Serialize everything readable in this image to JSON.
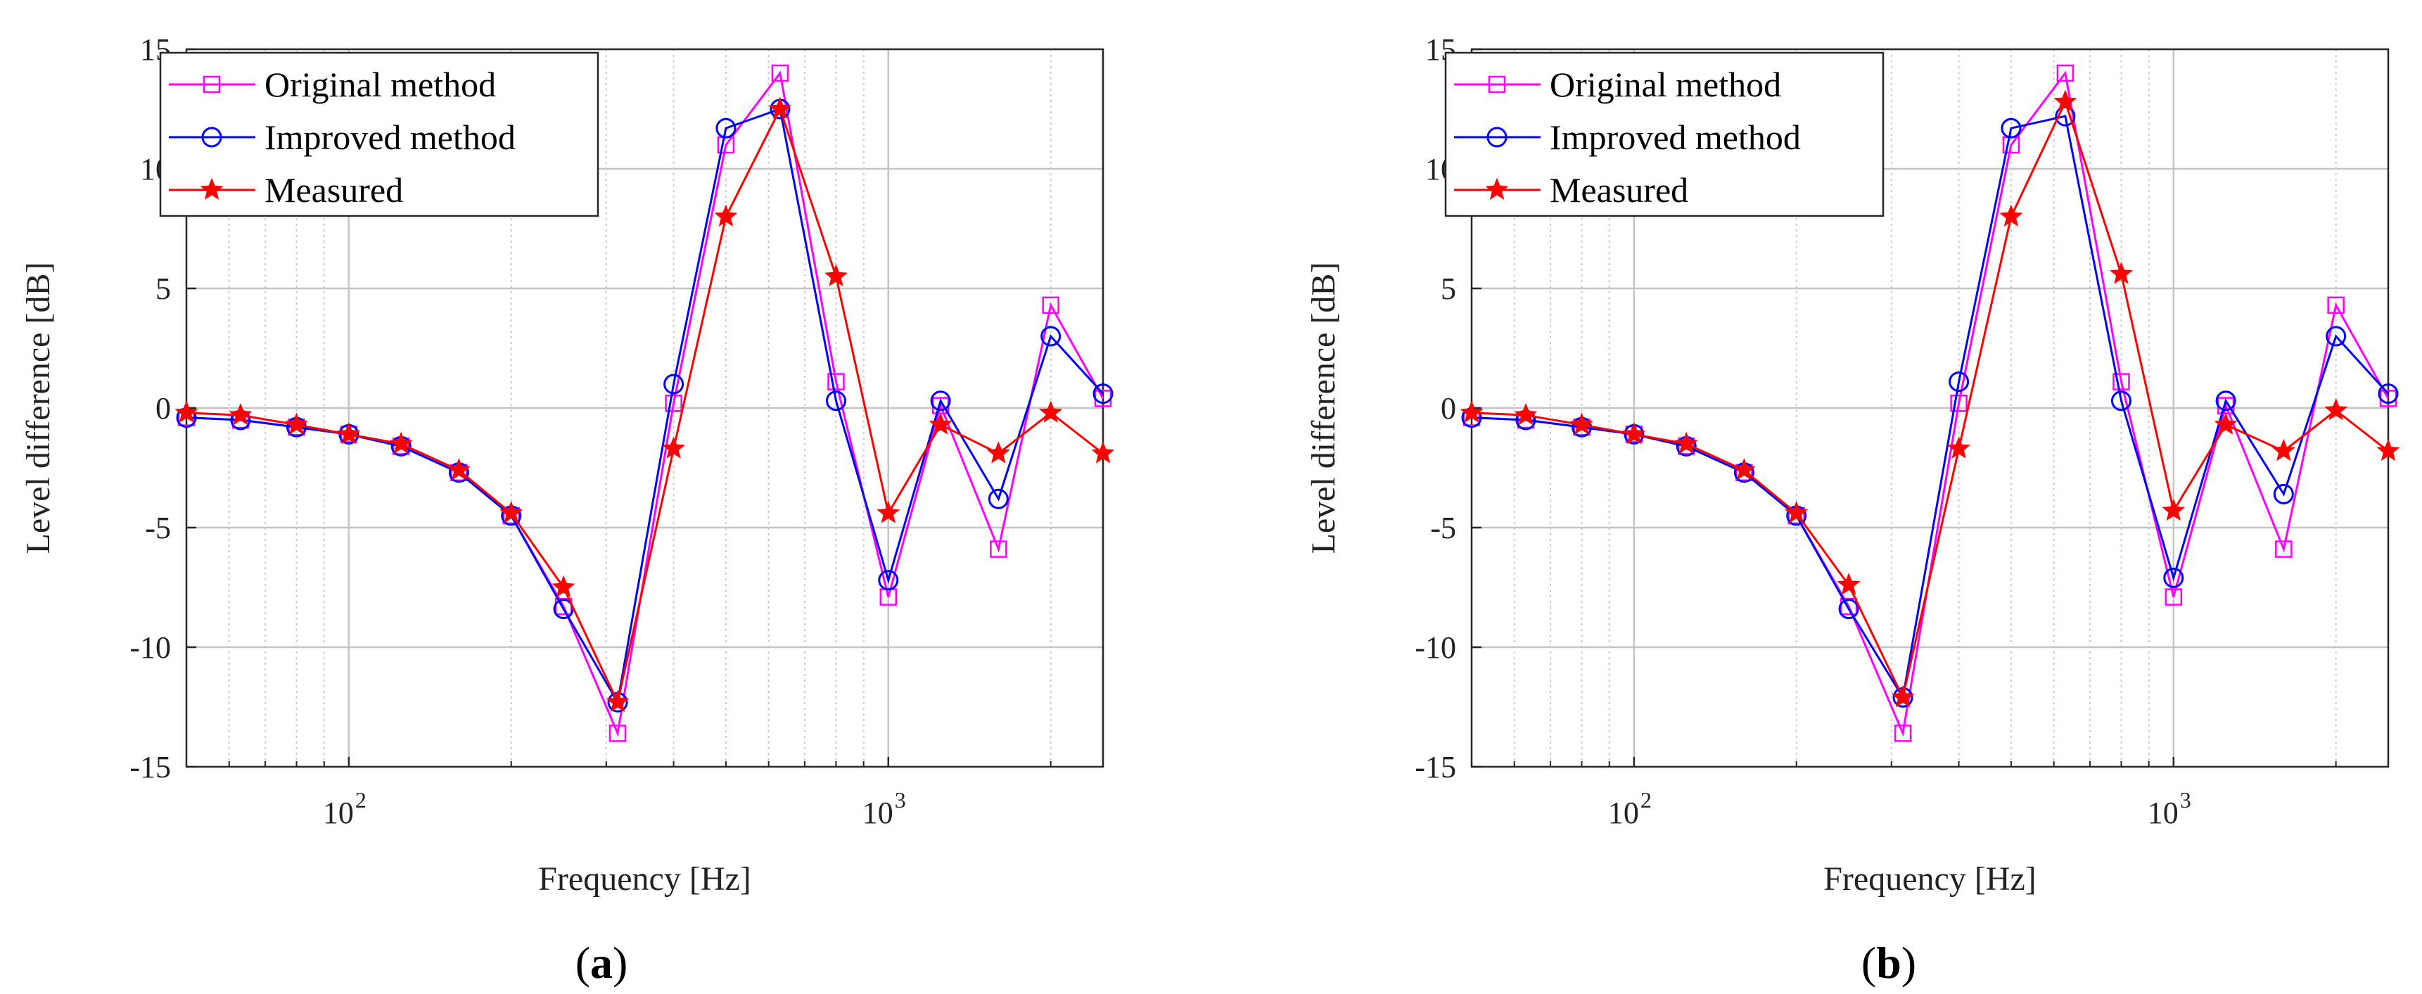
{
  "chart_data": [
    {
      "panel_label": "(a)",
      "type": "line",
      "xscale": "log",
      "xlim": [
        50,
        2500
      ],
      "ylim": [
        -15,
        15
      ],
      "grid": true,
      "xlabel": "Frequency [Hz]",
      "ylabel": "Level difference [dB]",
      "xticks": [
        {
          "value": 100,
          "base": "10",
          "exp": "2"
        },
        {
          "value": 1000,
          "base": "10",
          "exp": "3"
        }
      ],
      "yticks": [
        -15,
        -10,
        -5,
        0,
        5,
        10,
        15
      ],
      "legend_location": "top-left",
      "x": [
        50,
        63,
        80,
        100,
        125,
        160,
        200,
        250,
        315,
        400,
        500,
        630,
        800,
        1000,
        1250,
        1600,
        2000,
        2500
      ],
      "series": [
        {
          "name": "Original method",
          "color": "#ff00ff",
          "marker": "square",
          "values": [
            -0.4,
            -0.5,
            -0.8,
            -1.1,
            -1.6,
            -2.7,
            -4.5,
            -8.3,
            -13.6,
            0.2,
            11.0,
            14.0,
            1.1,
            -7.9,
            0.1,
            -5.9,
            4.3,
            0.4
          ]
        },
        {
          "name": "Improved method",
          "color": "#0000ff",
          "marker": "circle",
          "values": [
            -0.4,
            -0.5,
            -0.8,
            -1.1,
            -1.6,
            -2.7,
            -4.5,
            -8.4,
            -12.3,
            1.0,
            11.7,
            12.5,
            0.3,
            -7.2,
            0.3,
            -3.8,
            3.0,
            0.6
          ]
        },
        {
          "name": "Measured",
          "color": "#ff0000",
          "marker": "star",
          "values": [
            -0.2,
            -0.3,
            -0.7,
            -1.1,
            -1.5,
            -2.6,
            -4.4,
            -7.5,
            -12.3,
            -1.7,
            8.0,
            12.5,
            5.5,
            -4.4,
            -0.7,
            -1.9,
            -0.2,
            -1.9
          ]
        }
      ]
    },
    {
      "panel_label": "(b)",
      "type": "line",
      "xscale": "log",
      "xlim": [
        50,
        2500
      ],
      "ylim": [
        -15,
        15
      ],
      "grid": true,
      "xlabel": "Frequency [Hz]",
      "ylabel": "Level difference [dB]",
      "xticks": [
        {
          "value": 100,
          "base": "10",
          "exp": "2"
        },
        {
          "value": 1000,
          "base": "10",
          "exp": "3"
        }
      ],
      "yticks": [
        -15,
        -10,
        -5,
        0,
        5,
        10,
        15
      ],
      "legend_location": "top-left",
      "x": [
        50,
        63,
        80,
        100,
        125,
        160,
        200,
        250,
        315,
        400,
        500,
        630,
        800,
        1000,
        1250,
        1600,
        2000,
        2500
      ],
      "series": [
        {
          "name": "Original method",
          "color": "#ff00ff",
          "marker": "square",
          "values": [
            -0.4,
            -0.5,
            -0.8,
            -1.1,
            -1.6,
            -2.7,
            -4.5,
            -8.3,
            -13.6,
            0.2,
            11.0,
            14.0,
            1.1,
            -7.9,
            0.1,
            -5.9,
            4.3,
            0.4
          ]
        },
        {
          "name": "Improved method",
          "color": "#0000ff",
          "marker": "circle",
          "values": [
            -0.4,
            -0.5,
            -0.8,
            -1.1,
            -1.6,
            -2.7,
            -4.5,
            -8.4,
            -12.1,
            1.1,
            11.7,
            12.2,
            0.3,
            -7.1,
            0.3,
            -3.6,
            3.0,
            0.6
          ]
        },
        {
          "name": "Measured",
          "color": "#ff0000",
          "marker": "star",
          "values": [
            -0.2,
            -0.3,
            -0.7,
            -1.1,
            -1.5,
            -2.6,
            -4.4,
            -7.4,
            -12.1,
            -1.7,
            8.0,
            12.8,
            5.6,
            -4.3,
            -0.7,
            -1.8,
            -0.1,
            -1.8
          ]
        }
      ]
    }
  ]
}
